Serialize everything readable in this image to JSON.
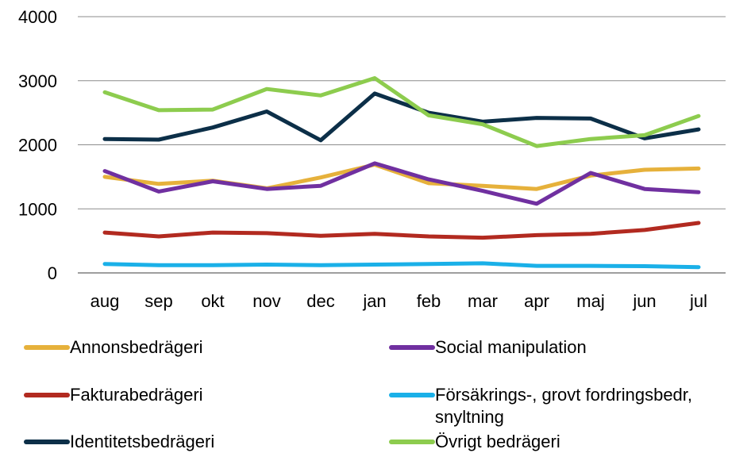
{
  "chart_data": {
    "type": "line",
    "categories": [
      "aug",
      "sep",
      "okt",
      "nov",
      "dec",
      "jan",
      "feb",
      "mar",
      "apr",
      "maj",
      "jun",
      "jul"
    ],
    "ylim": [
      0,
      4000
    ],
    "yticks": [
      0,
      1000,
      2000,
      3000,
      4000
    ],
    "grid": true,
    "legend_position": "bottom",
    "series": [
      {
        "name": "Annonsbedrägeri",
        "color": "#e6b13b",
        "values": [
          1500,
          1390,
          1440,
          1320,
          1490,
          1690,
          1400,
          1360,
          1310,
          1520,
          1610,
          1630
        ]
      },
      {
        "name": "Social manipulation",
        "color": "#7030a0",
        "values": [
          1590,
          1270,
          1430,
          1310,
          1360,
          1710,
          1460,
          1280,
          1080,
          1560,
          1310,
          1260
        ]
      },
      {
        "name": "Fakturabedrägeri",
        "color": "#b22a20",
        "values": [
          630,
          570,
          630,
          620,
          580,
          610,
          570,
          550,
          590,
          610,
          670,
          780
        ]
      },
      {
        "name": "Försäkrings-, grovt fordringsbedr, snyltning",
        "color": "#1ab0e8",
        "values": [
          140,
          120,
          120,
          130,
          120,
          130,
          140,
          150,
          110,
          110,
          105,
          90
        ]
      },
      {
        "name": "Identitetsbedrägeri",
        "color": "#0c2f48",
        "values": [
          2090,
          2080,
          2270,
          2520,
          2070,
          2800,
          2500,
          2360,
          2420,
          2410,
          2100,
          2240
        ]
      },
      {
        "name": "Övrigt bedrägeri",
        "color": "#8dcc4e",
        "values": [
          2820,
          2540,
          2550,
          2870,
          2770,
          3040,
          2460,
          2320,
          1980,
          2090,
          2150,
          2450
        ]
      }
    ]
  }
}
